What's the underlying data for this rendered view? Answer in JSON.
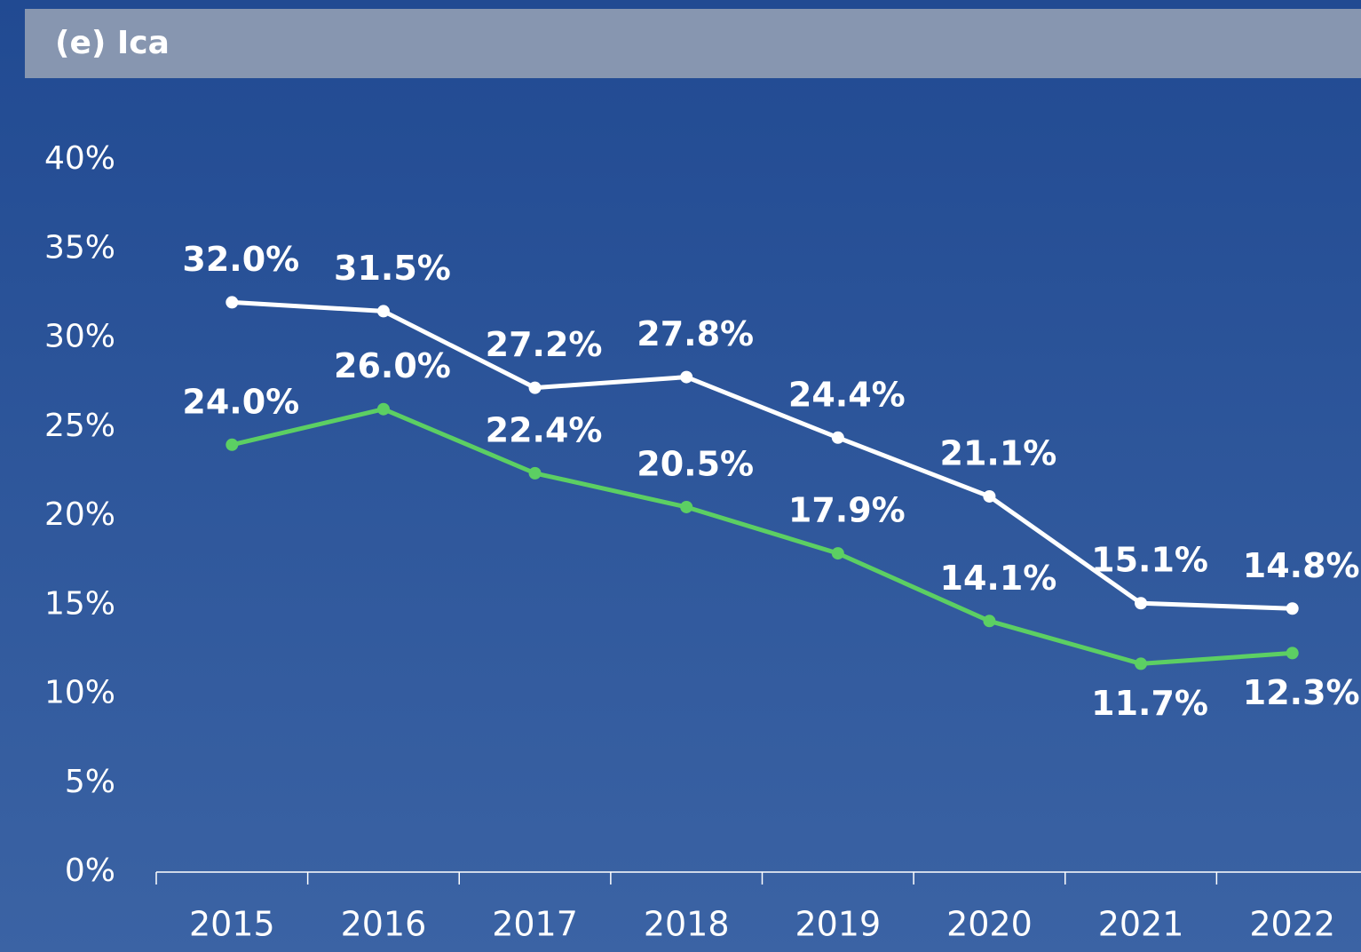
{
  "chart_data": {
    "type": "line",
    "title": "(e) Ica",
    "categories": [
      "2015",
      "2016",
      "2017",
      "2018",
      "2019",
      "2020",
      "2021",
      "2022"
    ],
    "series": [
      {
        "color": "#ffffff",
        "values": [
          32.0,
          31.5,
          27.2,
          27.8,
          24.4,
          21.1,
          15.1,
          14.8
        ],
        "value_labels": [
          "32.0%",
          "31.5%",
          "27.2%",
          "27.8%",
          "24.4%",
          "21.1%",
          "15.1%",
          "14.8%"
        ]
      },
      {
        "color": "#5ccf63",
        "values": [
          24.0,
          26.0,
          22.4,
          20.5,
          17.9,
          14.1,
          11.7,
          12.3
        ],
        "value_labels": [
          "24.0%",
          "26.0%",
          "22.4%",
          "20.5%",
          "17.9%",
          "14.1%",
          "11.7%",
          "12.3%"
        ]
      }
    ],
    "ylim": [
      0,
      40
    ],
    "yticks": [
      {
        "value": 0,
        "label": "0%"
      },
      {
        "value": 5,
        "label": "5%"
      },
      {
        "value": 10,
        "label": "10%"
      },
      {
        "value": 15,
        "label": "15%"
      },
      {
        "value": 20,
        "label": "20%"
      },
      {
        "value": 25,
        "label": "25%"
      },
      {
        "value": 30,
        "label": "30%"
      },
      {
        "value": 35,
        "label": "35%"
      },
      {
        "value": 40,
        "label": "40%"
      }
    ]
  }
}
